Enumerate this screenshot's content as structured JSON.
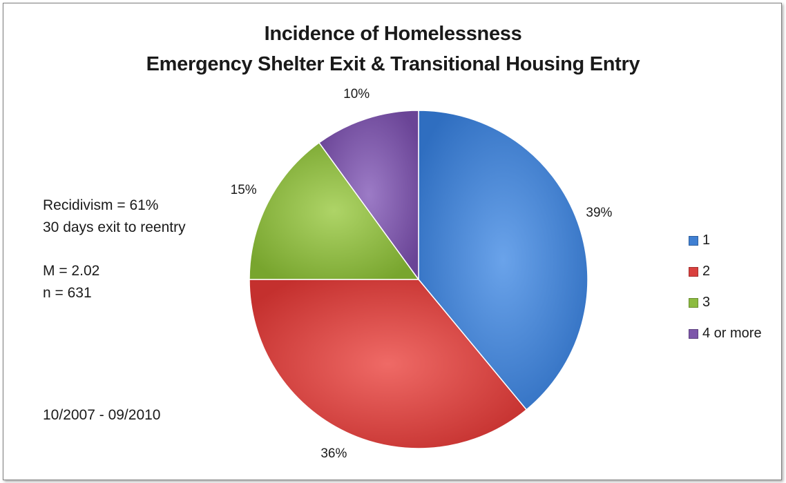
{
  "chart_data": {
    "type": "pie",
    "title_line1": "Incidence of Homelessness",
    "title_line2": "Emergency Shelter Exit & Transitional Housing Entry",
    "categories": [
      "1",
      "2",
      "3",
      "4 or more"
    ],
    "values": [
      39,
      36,
      15,
      10
    ],
    "data_labels": [
      "39%",
      "36%",
      "15%",
      "10%"
    ],
    "colors": [
      "#3f7fd2",
      "#d9403e",
      "#8cbb3f",
      "#7d56aa"
    ],
    "legend_position": "right",
    "annotations": {
      "recidivism": "Recidivism = 61%",
      "reentry": "30 days exit to reentry",
      "mean": "M = 2.02",
      "n": "n = 631",
      "period": "10/2007 - 09/2010"
    }
  }
}
